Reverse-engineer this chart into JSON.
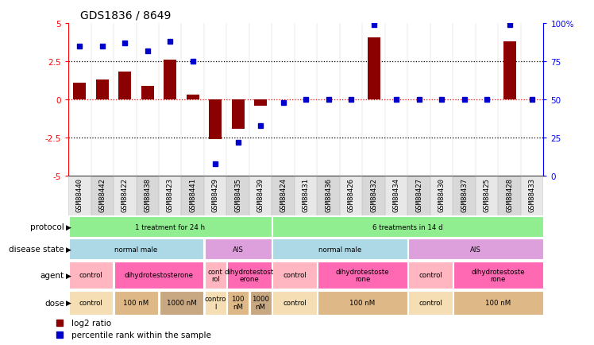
{
  "title": "GDS1836 / 8649",
  "samples": [
    "GSM88440",
    "GSM88442",
    "GSM88422",
    "GSM88438",
    "GSM88423",
    "GSM88441",
    "GSM88429",
    "GSM88435",
    "GSM88439",
    "GSM88424",
    "GSM88431",
    "GSM88436",
    "GSM88426",
    "GSM88432",
    "GSM88434",
    "GSM88427",
    "GSM88430",
    "GSM88437",
    "GSM88425",
    "GSM88428",
    "GSM88433"
  ],
  "log2_ratio": [
    1.1,
    1.3,
    1.85,
    0.9,
    2.6,
    0.3,
    -2.6,
    -1.9,
    -0.4,
    0.0,
    0.0,
    0.0,
    0.0,
    4.1,
    0.0,
    0.0,
    0.0,
    0.0,
    0.0,
    3.8,
    0.0
  ],
  "percentile": [
    85,
    85,
    87,
    82,
    88,
    75,
    8,
    22,
    33,
    48,
    50,
    50,
    50,
    99,
    50,
    50,
    50,
    50,
    50,
    99,
    50
  ],
  "protocol_groups": [
    {
      "label": "1 treatment for 24 h",
      "start": 0,
      "end": 9,
      "color": "#90EE90"
    },
    {
      "label": "6 treatments in 14 d",
      "start": 9,
      "end": 21,
      "color": "#90EE90"
    }
  ],
  "disease_state_groups": [
    {
      "label": "normal male",
      "start": 0,
      "end": 6,
      "color": "#ADD8E6"
    },
    {
      "label": "AIS",
      "start": 6,
      "end": 9,
      "color": "#DDA0DD"
    },
    {
      "label": "normal male",
      "start": 9,
      "end": 15,
      "color": "#ADD8E6"
    },
    {
      "label": "AIS",
      "start": 15,
      "end": 21,
      "color": "#DDA0DD"
    }
  ],
  "agent_groups": [
    {
      "label": "control",
      "start": 0,
      "end": 2,
      "color": "#FFB6C1"
    },
    {
      "label": "dihydrotestosterone",
      "start": 2,
      "end": 6,
      "color": "#FF69B4"
    },
    {
      "label": "cont\nrol",
      "start": 6,
      "end": 7,
      "color": "#FFB6C1"
    },
    {
      "label": "dihydrotestost\nerone",
      "start": 7,
      "end": 9,
      "color": "#FF69B4"
    },
    {
      "label": "control",
      "start": 9,
      "end": 11,
      "color": "#FFB6C1"
    },
    {
      "label": "dihydrotestoste\nrone",
      "start": 11,
      "end": 15,
      "color": "#FF69B4"
    },
    {
      "label": "control",
      "start": 15,
      "end": 17,
      "color": "#FFB6C1"
    },
    {
      "label": "dihydrotestoste\nrone",
      "start": 17,
      "end": 21,
      "color": "#FF69B4"
    }
  ],
  "dose_groups": [
    {
      "label": "control",
      "start": 0,
      "end": 2,
      "color": "#F5DEB3"
    },
    {
      "label": "100 nM",
      "start": 2,
      "end": 4,
      "color": "#DEB887"
    },
    {
      "label": "1000 nM",
      "start": 4,
      "end": 6,
      "color": "#C8A882"
    },
    {
      "label": "contro\nl",
      "start": 6,
      "end": 7,
      "color": "#F5DEB3"
    },
    {
      "label": "100\nnM",
      "start": 7,
      "end": 8,
      "color": "#DEB887"
    },
    {
      "label": "1000\nnM",
      "start": 8,
      "end": 9,
      "color": "#C8A882"
    },
    {
      "label": "control",
      "start": 9,
      "end": 11,
      "color": "#F5DEB3"
    },
    {
      "label": "100 nM",
      "start": 11,
      "end": 15,
      "color": "#DEB887"
    },
    {
      "label": "control",
      "start": 15,
      "end": 17,
      "color": "#F5DEB3"
    },
    {
      "label": "100 nM",
      "start": 17,
      "end": 21,
      "color": "#DEB887"
    }
  ],
  "bar_color": "#8B0000",
  "dot_color": "#0000CD",
  "ylim": [
    -5,
    5
  ],
  "yticks_left": [
    -5,
    -2.5,
    0,
    2.5,
    5
  ],
  "yticks_right": [
    0,
    25,
    50,
    75,
    100
  ],
  "hline_dotted": [
    -2.5,
    2.5
  ],
  "hline_red_dashed": 0
}
